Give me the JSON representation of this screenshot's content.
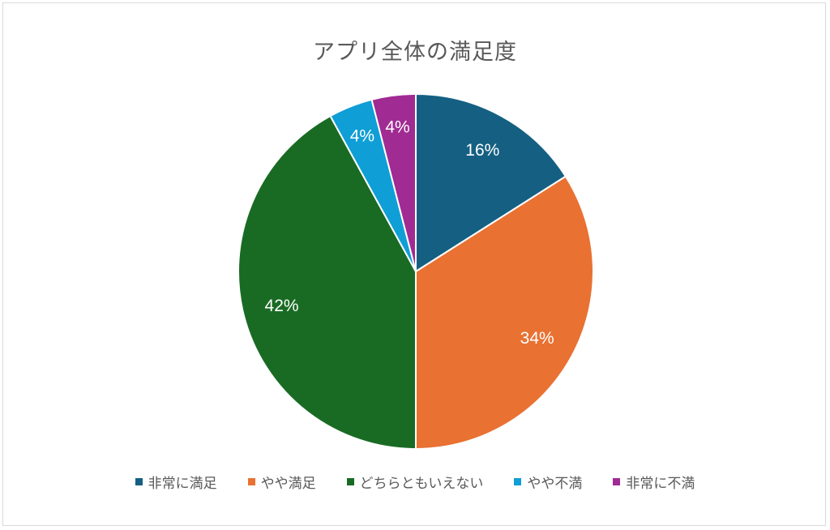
{
  "chart_data": {
    "type": "pie",
    "title": "アプリ全体の満足度",
    "categories": [
      "非常に満足",
      "やや満足",
      "どちらともいえない",
      "やや不満",
      "非常に不満"
    ],
    "values": [
      16,
      34,
      42,
      4,
      4
    ],
    "labels": [
      "16%",
      "34%",
      "42%",
      "4%",
      "4%"
    ],
    "colors": [
      "#156082",
      "#e97132",
      "#196b24",
      "#0f9ed5",
      "#a02b93"
    ],
    "legend_position": "bottom",
    "start_angle": "top",
    "direction": "clockwise"
  }
}
